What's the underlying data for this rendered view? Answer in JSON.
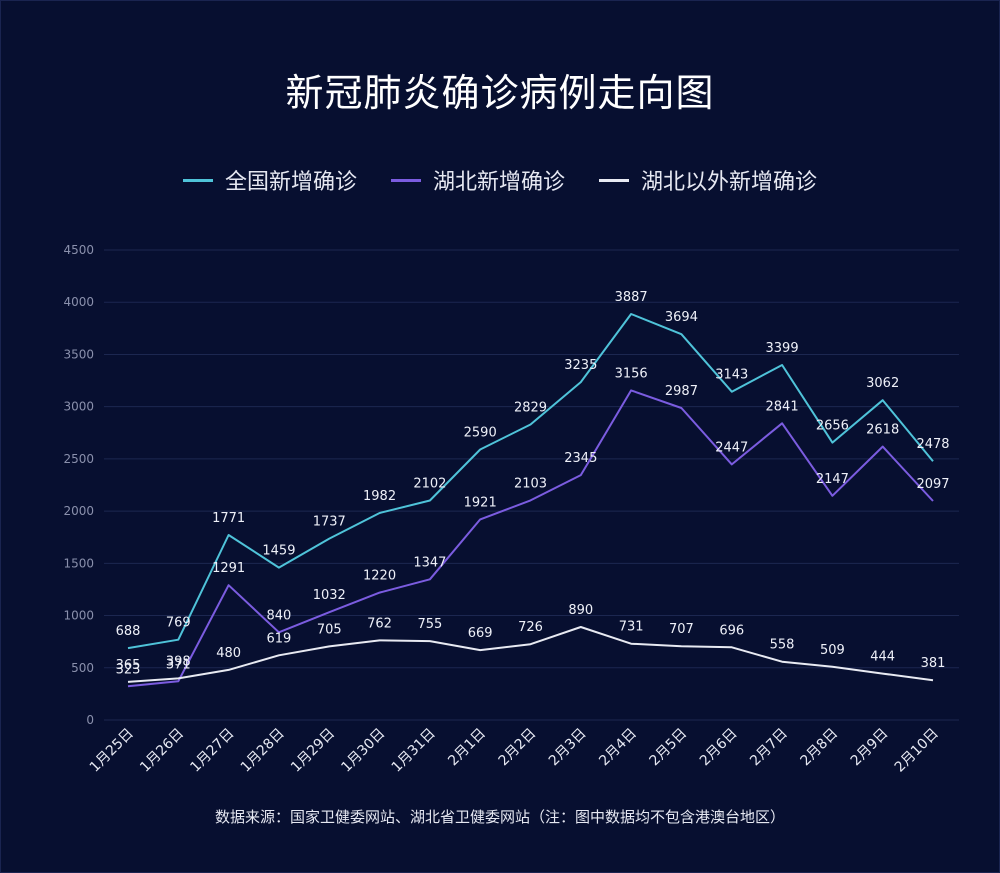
{
  "title": "新冠肺炎确诊病例走向图",
  "source_note": "数据来源：国家卫健委网站、湖北省卫健委网站（注：图中数据均不包含港澳台地区）",
  "chart_data": {
    "type": "line",
    "title": "新冠肺炎确诊病例走向图",
    "x": [
      "1月25日",
      "1月26日",
      "1月27日",
      "1月28日",
      "1月29日",
      "1月30日",
      "1月31日",
      "2月1日",
      "2月2日",
      "2月3日",
      "2月4日",
      "2月5日",
      "2月6日",
      "2月7日",
      "2月8日",
      "2月9日",
      "2月10日"
    ],
    "ylim": [
      0,
      4500
    ],
    "yticks": [
      0,
      500,
      1000,
      1500,
      2000,
      2500,
      3000,
      3500,
      4000,
      4500
    ],
    "grid": true,
    "legend_position": "top",
    "series": [
      {
        "name": "全国新增确诊",
        "color": "#4fc3d9",
        "values": [
          688,
          769,
          1771,
          1459,
          1737,
          1982,
          2102,
          2590,
          2829,
          3235,
          3887,
          3694,
          3143,
          3399,
          2656,
          3062,
          2478
        ]
      },
      {
        "name": "湖北新增确诊",
        "color": "#7b5ce0",
        "values": [
          323,
          371,
          1291,
          840,
          1032,
          1220,
          1347,
          1921,
          2103,
          2345,
          3156,
          2987,
          2447,
          2841,
          2147,
          2618,
          2097
        ]
      },
      {
        "name": "湖北以外新增确诊",
        "color": "#e8eaf2",
        "values": [
          365,
          398,
          480,
          619,
          705,
          762,
          755,
          669,
          726,
          890,
          731,
          707,
          696,
          558,
          509,
          444,
          381
        ]
      }
    ]
  }
}
